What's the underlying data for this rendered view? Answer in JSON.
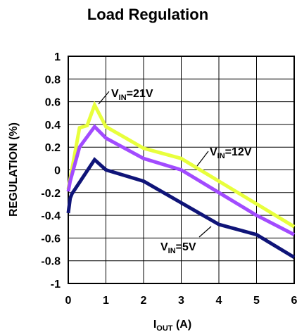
{
  "chart_data": {
    "type": "line",
    "title": "Load Regulation",
    "xlabel": {
      "main": "I",
      "sub": "OUT",
      "tail": " (A)"
    },
    "ylabel": "REGULATION (%)",
    "xlim": [
      0,
      6
    ],
    "ylim": [
      -1,
      1
    ],
    "x_ticks": [
      "0",
      "1",
      "2",
      "3",
      "4",
      "5",
      "6"
    ],
    "y_ticks": [
      "1",
      "0.8",
      "0.6",
      "0.4",
      "0.2",
      "0",
      "-0.2",
      "-0.4",
      "-0.6",
      "-0.8",
      "-1"
    ],
    "grid": true,
    "series": [
      {
        "name": "VIN=21V",
        "label": {
          "main": "V",
          "sub": "IN",
          "tail": "=21V"
        },
        "color": "#e8ff3c",
        "points": [
          [
            0,
            -0.17
          ],
          [
            0.05,
            -0.08
          ],
          [
            0.3,
            0.37
          ],
          [
            0.5,
            0.39
          ],
          [
            0.7,
            0.57
          ],
          [
            1,
            0.38
          ],
          [
            2,
            0.19
          ],
          [
            3,
            0.1
          ],
          [
            4,
            -0.1
          ],
          [
            5,
            -0.3
          ],
          [
            6,
            -0.5
          ]
        ]
      },
      {
        "name": "VIN=12V",
        "label": {
          "main": "V",
          "sub": "IN",
          "tail": "=12V"
        },
        "color": "#a24bff",
        "points": [
          [
            0,
            -0.19
          ],
          [
            0.05,
            -0.1
          ],
          [
            0.3,
            0.2
          ],
          [
            0.7,
            0.38
          ],
          [
            1,
            0.28
          ],
          [
            2,
            0.1
          ],
          [
            3,
            0
          ],
          [
            4,
            -0.2
          ],
          [
            5,
            -0.4
          ],
          [
            6,
            -0.57
          ]
        ]
      },
      {
        "name": "VIN=5V",
        "label": {
          "main": "V",
          "sub": "IN",
          "tail": "=5V"
        },
        "color": "#0f1478",
        "points": [
          [
            0,
            -0.38
          ],
          [
            0.05,
            -0.25
          ],
          [
            0.1,
            -0.21
          ],
          [
            0.7,
            0.09
          ],
          [
            1,
            0
          ],
          [
            2,
            -0.1
          ],
          [
            3,
            -0.29
          ],
          [
            4,
            -0.48
          ],
          [
            5,
            -0.57
          ],
          [
            6,
            -0.77
          ]
        ]
      }
    ]
  }
}
